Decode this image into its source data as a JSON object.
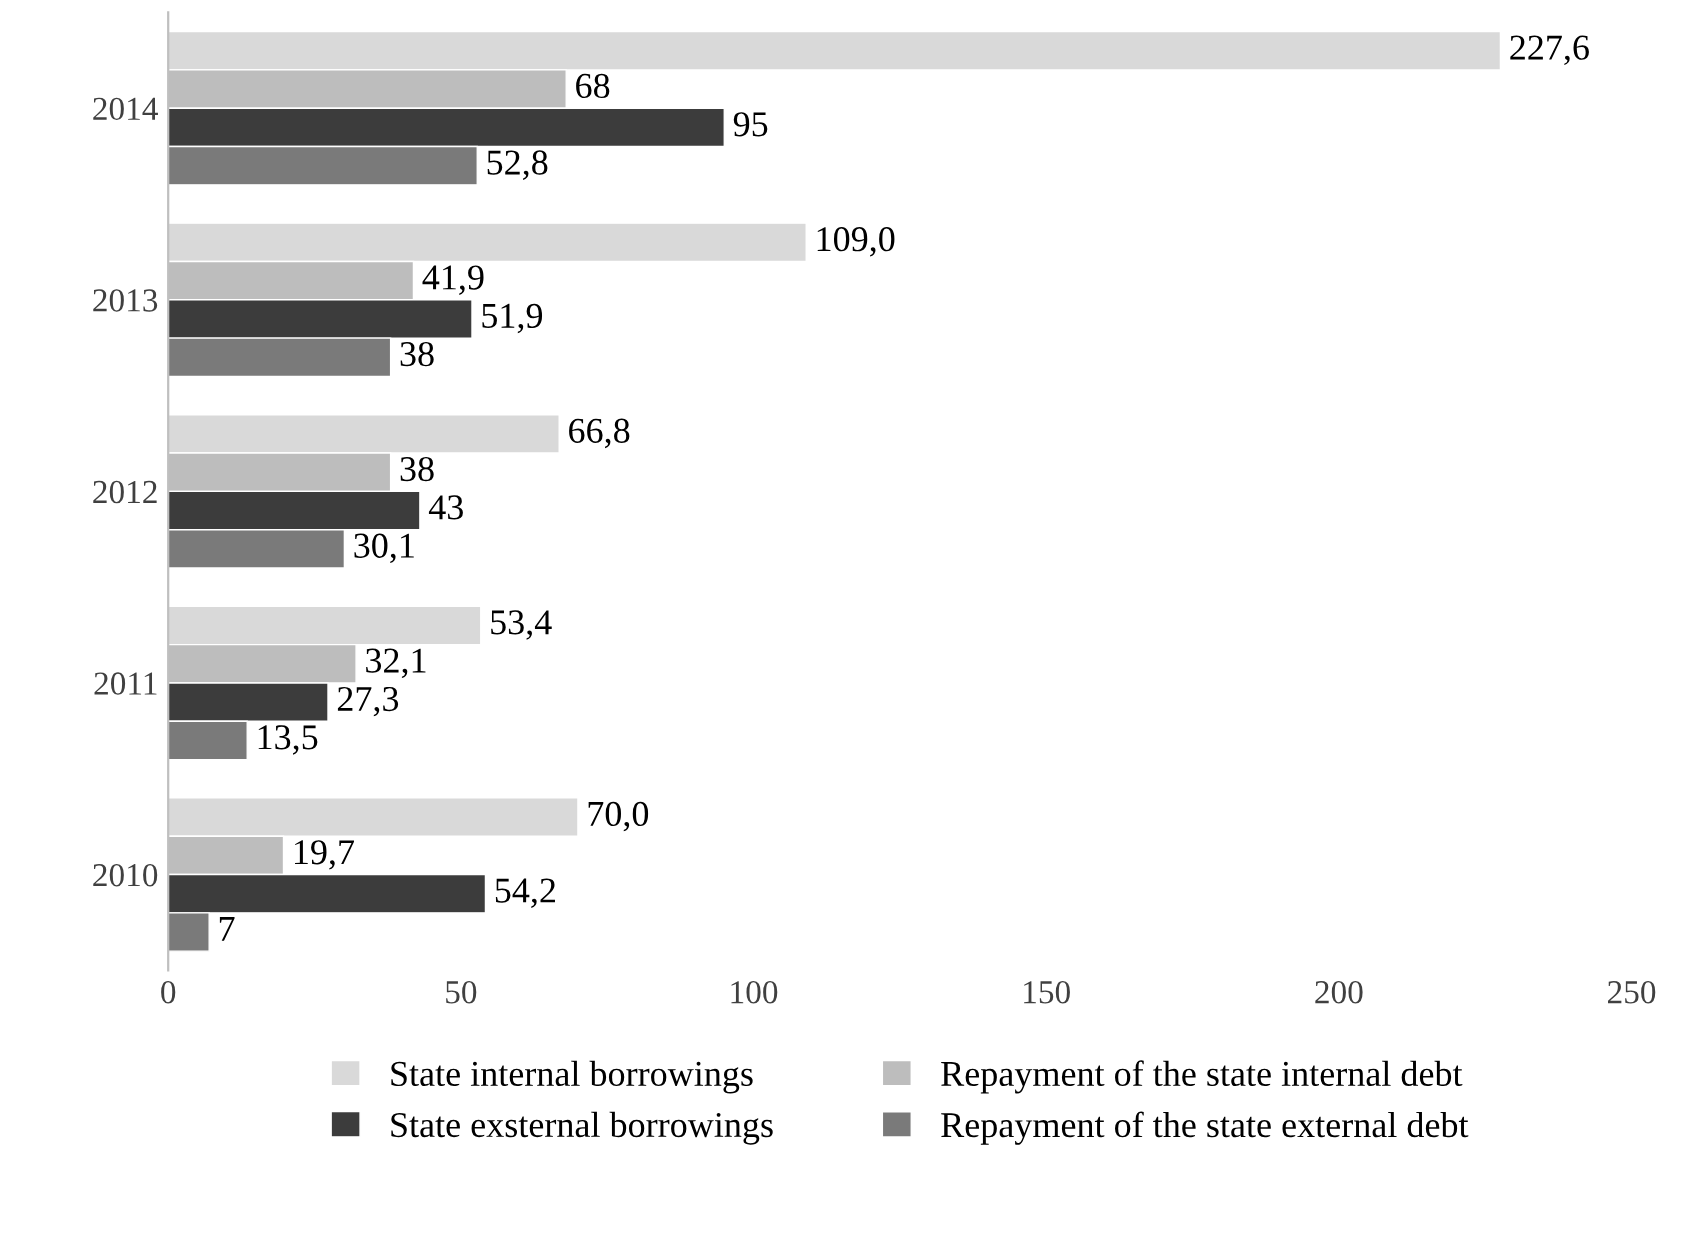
{
  "chart_data": {
    "type": "bar",
    "orientation": "horizontal",
    "categories": [
      "2014",
      "2013",
      "2012",
      "2011",
      "2010"
    ],
    "series": [
      {
        "name": "State internal borrowings",
        "color": "#d9d9d9",
        "values": [
          227.6,
          109.0,
          66.8,
          53.4,
          70.0
        ],
        "value_labels": [
          "227,6",
          "109,0",
          "66,8",
          "53,4",
          "70,0"
        ]
      },
      {
        "name": "Repayment of the state internal debt",
        "color": "#bdbdbd",
        "values": [
          68,
          41.9,
          38,
          32.1,
          19.7
        ],
        "value_labels": [
          "68",
          "41,9",
          "38",
          "32,1",
          "19,7"
        ]
      },
      {
        "name": "State exsternal borrowings",
        "color": "#3c3c3c",
        "values": [
          95,
          51.9,
          43,
          27.3,
          54.2
        ],
        "value_labels": [
          "95",
          "51,9",
          "43",
          "27,3",
          "54,2"
        ]
      },
      {
        "name": "Repayment of the state external debt",
        "color": "#7a7a7a",
        "values": [
          52.8,
          38,
          30.1,
          13.5,
          7
        ],
        "value_labels": [
          "52,8",
          "38",
          "30,1",
          "13,5",
          "7"
        ]
      }
    ],
    "xlim": [
      0,
      250
    ],
    "xticks": [
      0,
      50,
      100,
      150,
      200,
      250
    ],
    "grid": false,
    "legend": "bottom"
  }
}
